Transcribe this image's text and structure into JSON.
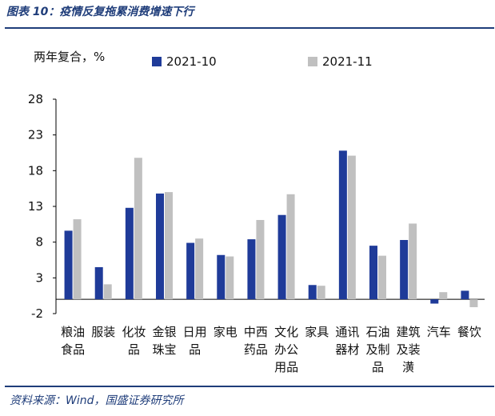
{
  "title": "图表 10：疫情反复拖累消费增速下行",
  "source": "资料来源：Wind，国盛证券研究所",
  "colors": {
    "accent": "#1f3d7a",
    "s1": "#1f3b99",
    "s2": "#c0c0c0"
  },
  "chart_data": {
    "type": "bar",
    "unit_label": "两年复合，%",
    "categories": [
      [
        "粮油",
        "食品"
      ],
      [
        "服装"
      ],
      [
        "化妆",
        "品"
      ],
      [
        "金银",
        "珠宝"
      ],
      [
        "日用",
        "品"
      ],
      [
        "家电"
      ],
      [
        "中西",
        "药品"
      ],
      [
        "文化",
        "办公",
        "用品"
      ],
      [
        "家具"
      ],
      [
        "通讯",
        "器材"
      ],
      [
        "石油",
        "及制",
        "品"
      ],
      [
        "建筑",
        "及装",
        "潢"
      ],
      [
        "汽车"
      ],
      [
        "餐饮"
      ]
    ],
    "series": [
      {
        "name": "2021-10",
        "values": [
          9.6,
          4.5,
          12.8,
          14.8,
          7.9,
          6.2,
          8.4,
          11.8,
          2.0,
          20.8,
          7.5,
          8.3,
          -0.6,
          1.2
        ]
      },
      {
        "name": "2021-11",
        "values": [
          11.2,
          2.1,
          19.8,
          15.0,
          8.5,
          6.0,
          11.1,
          14.7,
          1.9,
          20.1,
          6.1,
          10.6,
          1.0,
          -1.1
        ]
      }
    ],
    "ylim": [
      -2,
      28
    ],
    "yticks": [
      28,
      23,
      18,
      13,
      8,
      3,
      -2
    ],
    "legend_position": "top"
  }
}
